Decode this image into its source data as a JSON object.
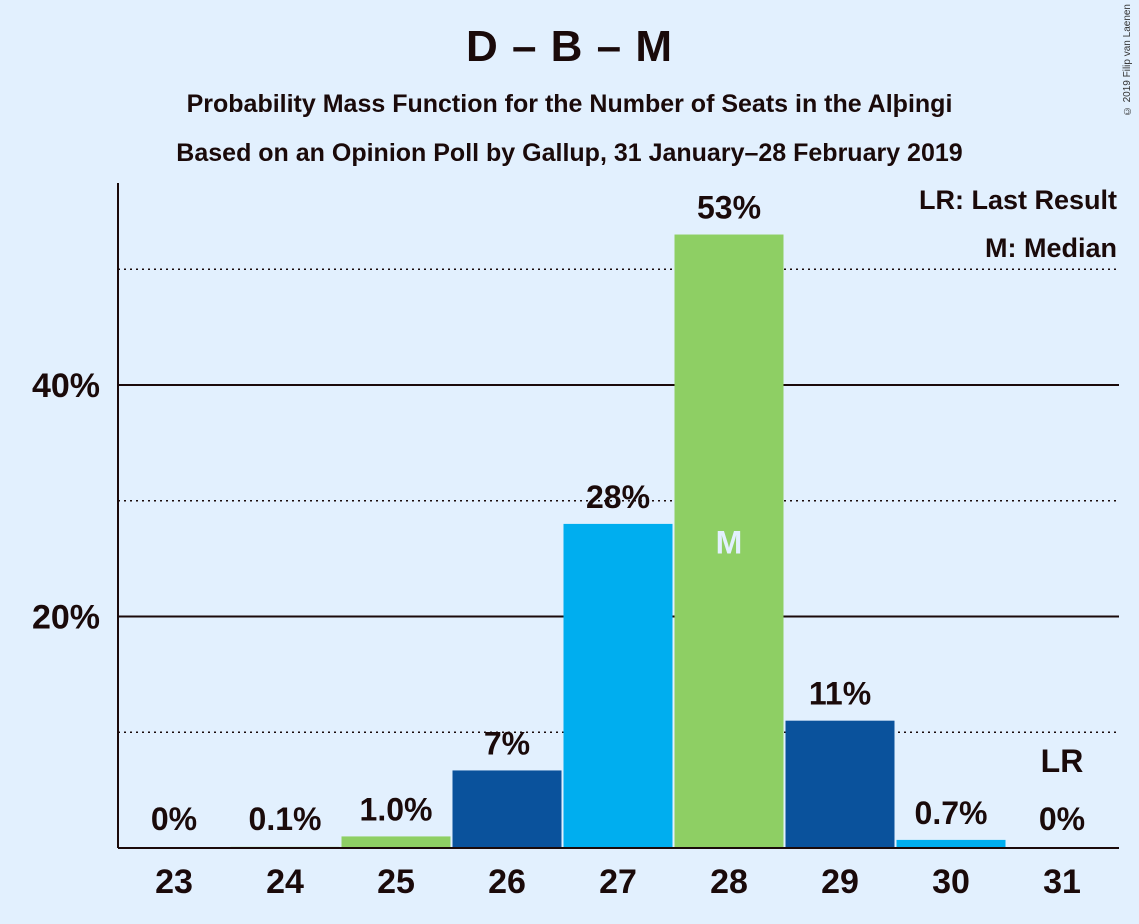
{
  "chart_data": {
    "type": "bar",
    "title": "D – B – M",
    "subtitle": "Probability Mass Function for the Number of Seats in the Alþingi",
    "subtitle2": "Based on an Opinion Poll by Gallup, 31 January–28 February 2019",
    "categories": [
      "23",
      "24",
      "25",
      "26",
      "27",
      "28",
      "29",
      "30",
      "31"
    ],
    "values": [
      0,
      0.1,
      1.0,
      6.7,
      28,
      53,
      11,
      0.7,
      0
    ],
    "value_labels": [
      "0%",
      "0.1%",
      "1.0%",
      "7%",
      "28%",
      "53%",
      "11%",
      "0.7%",
      "0%"
    ],
    "bar_colors": [
      "#8ecf64",
      "#8ecf64",
      "#8ecf64",
      "#0a529c",
      "#00aeef",
      "#8ecf64",
      "#0a529c",
      "#00aeef",
      "#8ecf64"
    ],
    "ylim": [
      0,
      57
    ],
    "yticks": [
      20,
      40
    ],
    "ytick_labels": [
      "20%",
      "40%"
    ],
    "dotted_gridlines": [
      10,
      30,
      50
    ],
    "median_category": "28",
    "median_marker": "M",
    "last_result_category": "31",
    "last_result_marker": "LR",
    "legend": [
      "LR: Last Result",
      "M: Median"
    ],
    "legend_position": "top-right",
    "copyright": "© 2019 Filip van Laenen"
  }
}
